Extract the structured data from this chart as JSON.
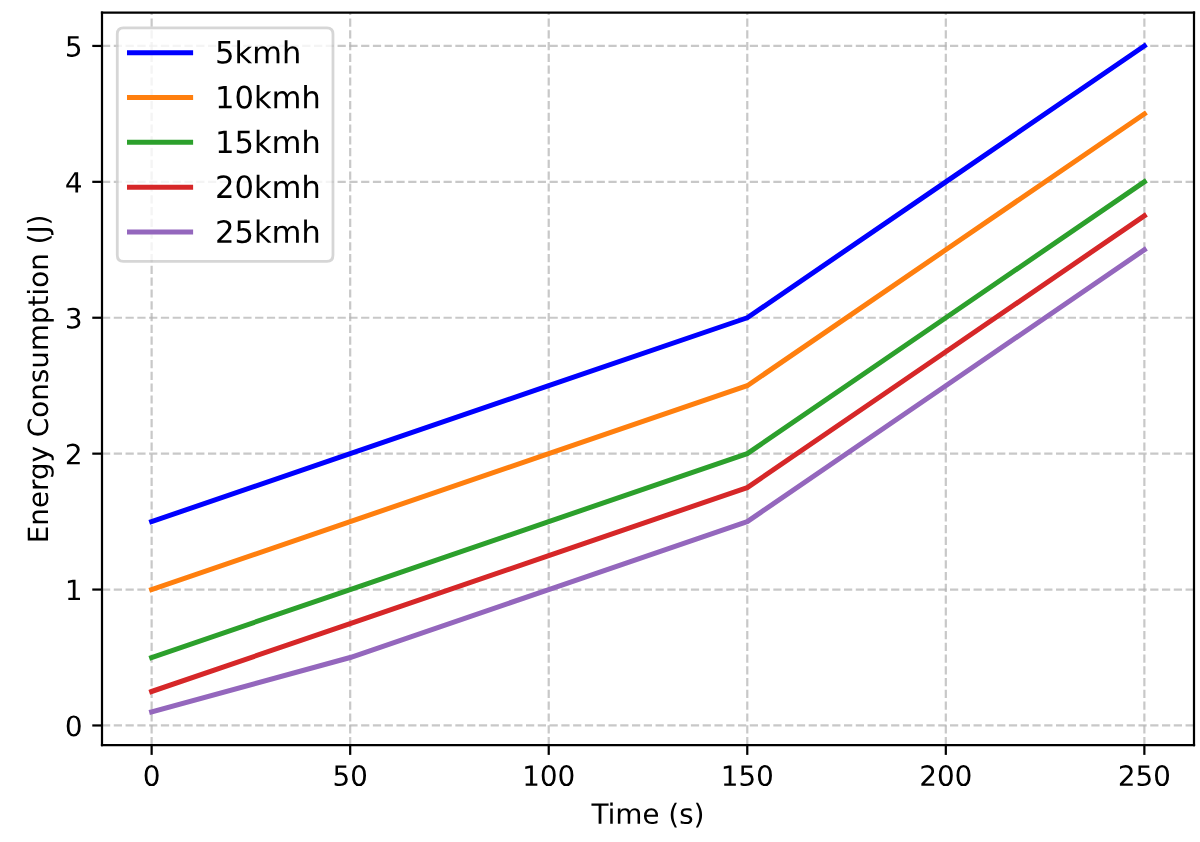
{
  "chart_data": {
    "type": "line",
    "xlabel": "Time (s)",
    "ylabel": "Energy Consumption (J)",
    "x": [
      0,
      50,
      100,
      150,
      200,
      250
    ],
    "series": [
      {
        "name": "5kmh",
        "color": "#0000ff",
        "values": [
          1.5,
          2.0,
          2.5,
          3.0,
          4.0,
          5.0
        ]
      },
      {
        "name": "10kmh",
        "color": "#ff7f0e",
        "values": [
          1.0,
          1.5,
          2.0,
          2.5,
          3.5,
          4.5
        ]
      },
      {
        "name": "15kmh",
        "color": "#2ca02c",
        "values": [
          0.5,
          1.0,
          1.5,
          2.0,
          3.0,
          4.0
        ]
      },
      {
        "name": "20kmh",
        "color": "#d62728",
        "values": [
          0.25,
          0.75,
          1.25,
          1.75,
          2.75,
          3.75
        ]
      },
      {
        "name": "25kmh",
        "color": "#9467bd",
        "values": [
          0.1,
          0.5,
          1.0,
          1.5,
          2.5,
          3.5
        ]
      }
    ],
    "xlim": [
      -12.5,
      262.5
    ],
    "ylim": [
      -0.145,
      5.245
    ],
    "xticks": [
      0,
      50,
      100,
      150,
      200,
      250
    ],
    "yticks": [
      0,
      1,
      2,
      3,
      4,
      5
    ],
    "grid": true,
    "legend": "top left",
    "line_style": "solid"
  }
}
